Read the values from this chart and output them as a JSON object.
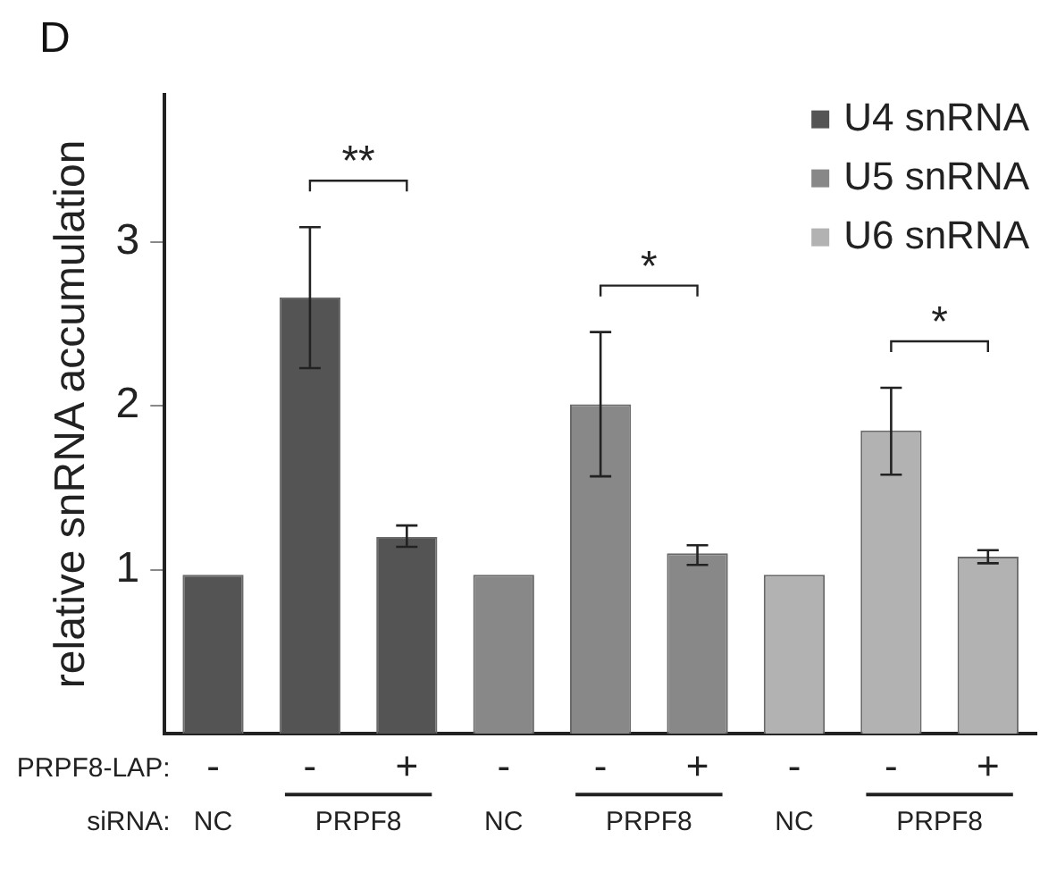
{
  "chart_data": {
    "type": "bar",
    "title": "D",
    "ylabel": "relative snRNA accumulation",
    "categories": [
      "-",
      "-",
      "+",
      "-",
      "-",
      "+",
      "-",
      "-",
      "+"
    ],
    "series": [
      {
        "name": "U4 snRNA",
        "color": "#545454",
        "values": [
          0.97,
          2.66,
          1.2,
          null,
          null,
          null,
          null,
          null,
          null
        ],
        "errors": [
          null,
          [
            2.23,
            3.09
          ],
          [
            1.14,
            1.27
          ],
          null,
          null,
          null,
          null,
          null,
          null
        ]
      },
      {
        "name": "U5 snRNA",
        "color": "#888888",
        "values": [
          null,
          null,
          null,
          0.97,
          2.01,
          1.1,
          null,
          null,
          null
        ],
        "errors": [
          null,
          null,
          null,
          null,
          [
            1.57,
            2.45
          ],
          [
            1.03,
            1.15
          ],
          null,
          null,
          null
        ]
      },
      {
        "name": "U6 snRNA",
        "color": "#b2b2b2",
        "values": [
          null,
          null,
          null,
          null,
          null,
          null,
          0.97,
          1.85,
          1.08
        ],
        "errors": [
          null,
          null,
          null,
          null,
          null,
          null,
          null,
          [
            1.58,
            2.11
          ],
          [
            1.04,
            1.12
          ]
        ]
      }
    ],
    "ylim": [
      0,
      3.9
    ],
    "yticks": [
      1,
      2,
      3
    ],
    "grid": false,
    "legend": "top right",
    "annotations": [
      "**",
      "*",
      "*",
      "PRPF8-LAP:",
      "siRNA:",
      "NC",
      "PRPF8",
      "NC",
      "PRPF8",
      "NC",
      "PRPF8"
    ]
  }
}
